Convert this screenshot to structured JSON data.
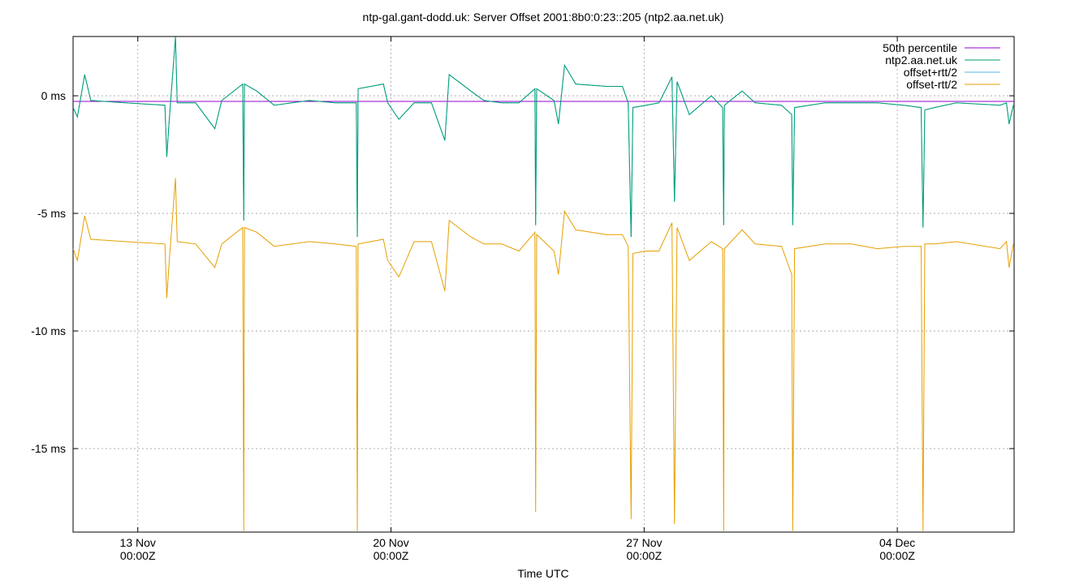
{
  "chart_data": {
    "type": "line",
    "title": "ntp-gal.gant-dodd.uk: Server Offset 2001:8b0:0:23::205 (ntp2.aa.net.uk)",
    "x_label": "Time UTC",
    "xlim": [
      11.21,
      37.23
    ],
    "xticks": [
      {
        "value": 13,
        "label": "13 Nov\n00:00Z"
      },
      {
        "value": 20,
        "label": "20 Nov\n00:00Z"
      },
      {
        "value": 27,
        "label": "27 Nov\n00:00Z"
      },
      {
        "value": 34,
        "label": "04 Dec\n00:00Z"
      }
    ],
    "ylim": [
      -18.55,
      2.52
    ],
    "yticks": [
      {
        "value": 0,
        "label": "0 ms"
      },
      {
        "value": -5,
        "label": "-5 ms"
      },
      {
        "value": -10,
        "label": "-10 ms"
      },
      {
        "value": -15,
        "label": "-15 ms"
      }
    ],
    "grid": true,
    "legend": "top-right",
    "x": [
      11.21,
      11.33,
      11.53,
      11.7,
      12.66,
      13.75,
      13.8,
      13.87,
      14.04,
      14.09,
      14.6,
      15.13,
      15.32,
      15.9,
      15.93,
      15.95,
      16.29,
      16.77,
      17.74,
      18.46,
      19.04,
      19.07,
      19.09,
      19.79,
      19.91,
      20.22,
      20.64,
      21.12,
      21.49,
      21.61,
      22.21,
      22.57,
      23.06,
      23.54,
      23.98,
      24.0,
      24.03,
      24.51,
      24.63,
      24.8,
      25.11,
      25.96,
      26.4,
      26.56,
      26.64,
      26.69,
      27.05,
      27.41,
      27.77,
      27.84,
      27.91,
      28.25,
      28.86,
      29.17,
      29.2,
      29.22,
      29.71,
      30.07,
      30.8,
      31.08,
      31.11,
      31.16,
      32.0,
      32.73,
      33.45,
      34.18,
      34.66,
      34.71,
      34.76,
      35.03,
      35.63,
      36.84,
      37.02,
      37.09,
      37.21
    ],
    "series": [
      {
        "name": "50th percentile",
        "color": "#9400d3",
        "x": [
          11.21,
          37.23
        ],
        "values": [
          -0.24,
          -0.24
        ]
      },
      {
        "name": "ntp2.aa.net.uk",
        "color": "#009e73",
        "values": [
          -0.5,
          -0.9,
          0.9,
          -0.2,
          -0.3,
          -0.4,
          -2.6,
          -1.0,
          2.5,
          -0.3,
          -0.3,
          -1.4,
          -0.2,
          0.5,
          -5.3,
          0.5,
          0.2,
          -0.4,
          -0.2,
          -0.3,
          -0.3,
          -6.0,
          0.3,
          0.5,
          -0.3,
          -1.0,
          -0.3,
          -0.3,
          -1.9,
          0.9,
          0.2,
          -0.2,
          -0.3,
          -0.3,
          0.3,
          -5.5,
          0.3,
          -0.2,
          -1.2,
          1.3,
          0.5,
          0.4,
          0.4,
          -0.3,
          -6.0,
          -0.5,
          -0.4,
          -0.3,
          0.8,
          -4.5,
          0.6,
          -0.8,
          0.0,
          -0.5,
          -5.5,
          -0.4,
          0.2,
          -0.3,
          -0.4,
          -0.8,
          -5.5,
          -0.5,
          -0.3,
          -0.3,
          -0.3,
          -0.4,
          -0.5,
          -5.6,
          -0.6,
          -0.5,
          -0.3,
          -0.4,
          -0.3,
          -1.2,
          -0.4
        ]
      },
      {
        "name": "offset+rtt/2",
        "color": "#56b4e9",
        "values": [
          -0.5,
          -0.9,
          0.9,
          -0.2,
          -0.3,
          -0.4,
          -2.6,
          -1.0,
          2.5,
          -0.3,
          -0.3,
          -1.4,
          -0.2,
          0.5,
          -5.3,
          0.5,
          0.2,
          -0.4,
          -0.2,
          -0.3,
          -0.3,
          -6.0,
          0.3,
          0.5,
          -0.3,
          -1.0,
          -0.3,
          -0.3,
          -1.9,
          0.9,
          0.2,
          -0.2,
          -0.3,
          -0.3,
          0.3,
          -5.5,
          0.3,
          -0.2,
          -1.2,
          1.3,
          0.5,
          0.4,
          0.4,
          -0.3,
          -6.0,
          -0.5,
          -0.4,
          -0.3,
          0.8,
          -4.5,
          0.6,
          -0.8,
          0.0,
          -0.5,
          -5.5,
          -0.4,
          0.2,
          -0.3,
          -0.4,
          -0.8,
          -5.5,
          -0.5,
          -0.3,
          -0.3,
          -0.3,
          -0.4,
          -0.5,
          -5.6,
          -0.6,
          -0.5,
          -0.3,
          -0.4,
          -0.3,
          -1.2,
          -0.4
        ]
      },
      {
        "name": "offset-rtt/2",
        "color": "#e69f00",
        "values": [
          -6.5,
          -7.0,
          -5.1,
          -6.1,
          -6.2,
          -6.3,
          -8.6,
          -7.0,
          -3.5,
          -6.2,
          -6.3,
          -7.3,
          -6.3,
          -5.6,
          -18.5,
          -5.6,
          -5.8,
          -6.4,
          -6.2,
          -6.3,
          -6.4,
          -18.5,
          -6.3,
          -6.1,
          -7.0,
          -7.7,
          -6.2,
          -6.2,
          -8.3,
          -5.3,
          -6.0,
          -6.3,
          -6.3,
          -6.6,
          -5.8,
          -17.7,
          -5.9,
          -6.6,
          -7.6,
          -4.9,
          -5.7,
          -5.9,
          -5.9,
          -6.4,
          -18.0,
          -6.7,
          -6.6,
          -6.6,
          -5.4,
          -18.2,
          -5.6,
          -7.0,
          -6.2,
          -6.5,
          -18.5,
          -6.5,
          -5.7,
          -6.3,
          -6.4,
          -7.6,
          -18.5,
          -6.5,
          -6.3,
          -6.3,
          -6.5,
          -6.4,
          -6.4,
          -18.5,
          -6.3,
          -6.3,
          -6.2,
          -6.5,
          -6.2,
          -7.3,
          -6.3
        ]
      }
    ]
  }
}
